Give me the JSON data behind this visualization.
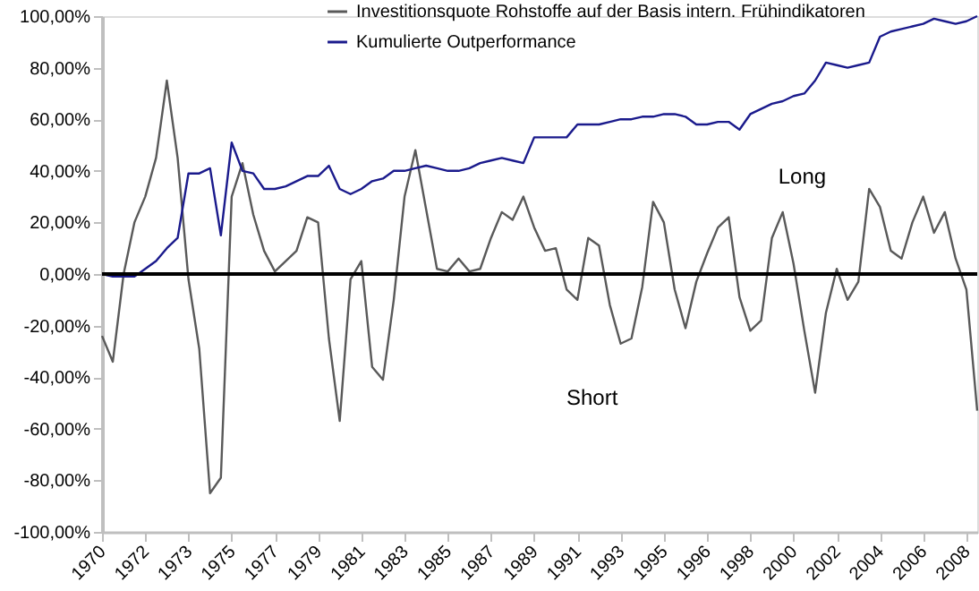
{
  "chart_data": {
    "type": "line",
    "categories": [
      "1970",
      null,
      null,
      null,
      "1972",
      null,
      null,
      null,
      "1973",
      null,
      null,
      null,
      "1975",
      null,
      null,
      null,
      "1977",
      null,
      null,
      null,
      "1979",
      null,
      null,
      null,
      "1981",
      null,
      null,
      null,
      "1983",
      null,
      null,
      null,
      "1985",
      null,
      null,
      null,
      "1987",
      null,
      null,
      null,
      "1989",
      null,
      null,
      null,
      "1991",
      null,
      null,
      null,
      "1993",
      null,
      null,
      null,
      "1995",
      null,
      null,
      null,
      "1996",
      null,
      null,
      null,
      "1998",
      null,
      null,
      null,
      "2000",
      null,
      null,
      null,
      "2002",
      null,
      null,
      null,
      "2004",
      null,
      null,
      null,
      "2006",
      null,
      null,
      null,
      "2008",
      null
    ],
    "ylim": [
      -100,
      100
    ],
    "yticks": [
      {
        "value": -100,
        "label": "-100,00%"
      },
      {
        "value": -80,
        "label": "-80,00%"
      },
      {
        "value": -60,
        "label": "-60,00%"
      },
      {
        "value": -40,
        "label": "-40,00%"
      },
      {
        "value": -20,
        "label": "-20,00%"
      },
      {
        "value": 0,
        "label": "0,00%"
      },
      {
        "value": 20,
        "label": "20,00%"
      },
      {
        "value": 40,
        "label": "40,00%"
      },
      {
        "value": 60,
        "label": "60,00%"
      },
      {
        "value": 80,
        "label": "80,00%"
      },
      {
        "value": 100,
        "label": "100,00%"
      }
    ],
    "grid": false,
    "legend": "top",
    "marker": "none",
    "line_style": "solid",
    "ref_lines": [
      {
        "axis": "y",
        "value": 0,
        "color": "#000000"
      }
    ],
    "annotations": [
      "Long",
      "Short"
    ],
    "series": [
      {
        "name": "Investitionsquote Rohstoffe auf der Basis intern. Frühindikatoren",
        "color": "#595959",
        "values": [
          -24,
          -34,
          0,
          20,
          30,
          45,
          75,
          45,
          -2,
          -29,
          -85,
          -79,
          30,
          43,
          23,
          9,
          1,
          5,
          9,
          22,
          20,
          -25,
          -57,
          -2,
          5,
          -36,
          -41,
          -10,
          30,
          48,
          25,
          2,
          1,
          6,
          1,
          2,
          14,
          24,
          21,
          30,
          18,
          9,
          10,
          -6,
          -10,
          14,
          11,
          -12,
          -27,
          -25,
          -5,
          28,
          20,
          -6,
          -21,
          -3,
          8,
          18,
          22,
          -9,
          -22,
          -18,
          14,
          24,
          4,
          -22,
          -46,
          -15,
          2,
          -10,
          -3,
          33,
          26,
          9,
          6,
          20,
          30,
          16,
          24,
          6,
          -6,
          -53
        ]
      },
      {
        "name": "Kumulierte Outperformance",
        "color": "#1a1a8c",
        "values": [
          0,
          -1,
          -1,
          -1,
          2,
          5,
          10,
          14,
          39,
          39,
          41,
          15,
          51,
          40,
          39,
          33,
          33,
          34,
          36,
          38,
          38,
          42,
          33,
          31,
          33,
          36,
          37,
          40,
          40,
          41,
          42,
          41,
          40,
          40,
          41,
          43,
          44,
          45,
          44,
          43,
          53,
          53,
          53,
          53,
          58,
          58,
          58,
          59,
          60,
          60,
          61,
          61,
          62,
          62,
          61,
          58,
          58,
          59,
          59,
          56,
          62,
          64,
          66,
          67,
          69,
          70,
          75,
          82,
          81,
          80,
          81,
          82,
          92,
          94,
          95,
          96,
          97,
          99,
          98,
          97,
          98,
          100
        ]
      }
    ]
  }
}
